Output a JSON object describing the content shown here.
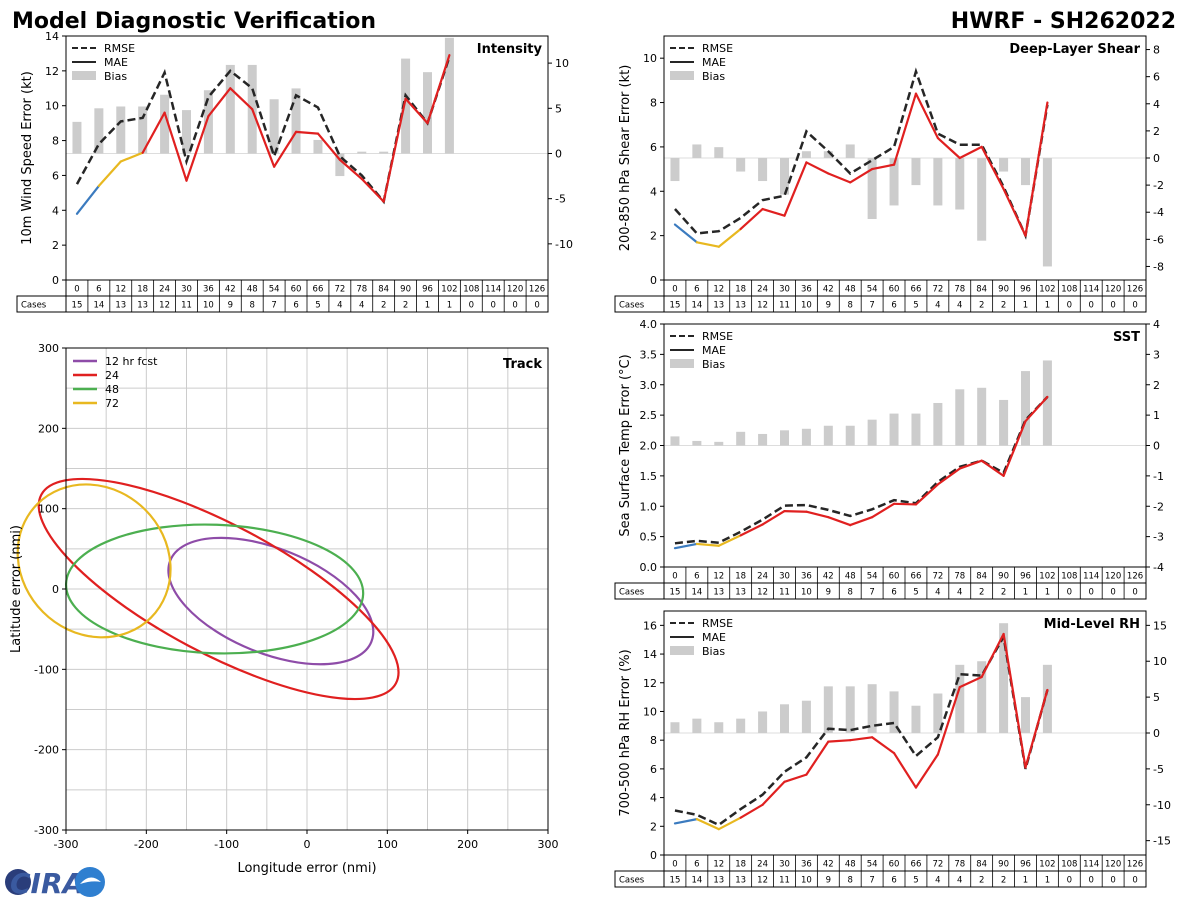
{
  "header": {
    "title": "Model Diagnostic Verification",
    "model_storm": "HWRF - SH262022"
  },
  "logo": {
    "text": "CIRA"
  },
  "colors": {
    "rmse": "#262626",
    "mae": "#262626",
    "bias": "#cccccc",
    "seg_blue": "#3b7bbf",
    "seg_yellow": "#e8b820",
    "seg_red": "#e02020"
  },
  "table": {
    "hours": [
      "0",
      "6",
      "12",
      "18",
      "24",
      "30",
      "36",
      "42",
      "48",
      "54",
      "60",
      "66",
      "72",
      "78",
      "84",
      "90",
      "96",
      "102",
      "108",
      "114",
      "120",
      "126"
    ],
    "cases_label": "Cases",
    "cases": [
      "15",
      "14",
      "13",
      "13",
      "12",
      "11",
      "10",
      "9",
      "8",
      "7",
      "6",
      "5",
      "4",
      "4",
      "2",
      "2",
      "1",
      "1",
      "0",
      "0",
      "0",
      "0"
    ]
  },
  "chart_data": [
    {
      "id": "intensity",
      "type": "line",
      "title": "Intensity",
      "ylabel": "10m Wind Speed Error (kt)",
      "ylim": [
        0,
        14
      ],
      "yticks": [
        0,
        2,
        4,
        6,
        8,
        10,
        12,
        14
      ],
      "y2lim": [
        -14,
        13
      ],
      "y2ticks": [
        -10,
        -5,
        0,
        5,
        10
      ],
      "legend": [
        "RMSE",
        "MAE",
        "Bias"
      ],
      "x": [
        0,
        6,
        12,
        18,
        24,
        30,
        36,
        42,
        48,
        54,
        60,
        66,
        72,
        78,
        84,
        90,
        96,
        102
      ],
      "rmse": [
        5.5,
        7.8,
        9.1,
        9.3,
        11.9,
        6.8,
        10.5,
        12.0,
        11.0,
        7.1,
        10.6,
        9.9,
        7.1,
        6.0,
        4.5,
        10.6,
        9.0,
        12.8
      ],
      "mae": [
        3.8,
        5.4,
        6.8,
        7.3,
        9.6,
        5.7,
        9.4,
        11.0,
        9.8,
        6.5,
        8.5,
        8.4,
        6.9,
        5.8,
        4.5,
        10.4,
        9.0,
        12.9
      ],
      "bias": [
        3.5,
        5.0,
        5.2,
        5.2,
        6.5,
        4.8,
        7.0,
        9.8,
        9.8,
        6.0,
        7.2,
        1.5,
        -2.5,
        0.2,
        0.2,
        10.5,
        9.0,
        12.8
      ]
    },
    {
      "id": "shear",
      "type": "line",
      "title": "Deep-Layer Shear",
      "ylabel": "200-850 hPa Shear Error (kt)",
      "ylim": [
        0,
        11
      ],
      "yticks": [
        0,
        2,
        4,
        6,
        8,
        10
      ],
      "y2lim": [
        -9,
        9
      ],
      "y2ticks": [
        -8,
        -6,
        -4,
        -2,
        0,
        2,
        4,
        6,
        8
      ],
      "legend": [
        "RMSE",
        "MAE",
        "Bias"
      ],
      "x": [
        0,
        6,
        12,
        18,
        24,
        30,
        36,
        42,
        48,
        54,
        60,
        66,
        72,
        78,
        84,
        90,
        96,
        102
      ],
      "rmse": [
        3.2,
        2.1,
        2.2,
        2.8,
        3.6,
        3.8,
        6.7,
        5.8,
        4.8,
        5.4,
        6.0,
        9.4,
        6.6,
        6.1,
        6.1,
        4.2,
        2.0,
        7.9
      ],
      "mae": [
        2.5,
        1.7,
        1.5,
        2.3,
        3.2,
        2.9,
        5.3,
        4.8,
        4.4,
        5.0,
        5.2,
        8.4,
        6.4,
        5.5,
        6.0,
        4.1,
        2.0,
        8.0
      ],
      "bias": [
        -1.7,
        1.0,
        0.8,
        -1.0,
        -1.7,
        -2.7,
        0.5,
        0.5,
        1.0,
        -4.5,
        -3.5,
        -2.0,
        -3.5,
        -3.8,
        -6.1,
        -1.0,
        -2.0,
        -8.0
      ]
    },
    {
      "id": "sst",
      "type": "line",
      "title": "SST",
      "ylabel": "Sea Surface Temp Error (°C)",
      "ylim": [
        0,
        4
      ],
      "yticks": [
        "0.0",
        "0.5",
        "1.0",
        "1.5",
        "2.0",
        "2.5",
        "3.0",
        "3.5",
        "4.0"
      ],
      "y2lim": [
        -4,
        4
      ],
      "y2ticks": [
        -4,
        -3,
        -2,
        -1,
        0,
        1,
        2,
        3,
        4
      ],
      "legend": [
        "RMSE",
        "MAE",
        "Bias"
      ],
      "x": [
        0,
        6,
        12,
        18,
        24,
        30,
        36,
        42,
        48,
        54,
        60,
        66,
        72,
        78,
        84,
        90,
        96,
        102
      ],
      "rmse": [
        0.39,
        0.43,
        0.4,
        0.58,
        0.78,
        1.01,
        1.02,
        0.94,
        0.84,
        0.95,
        1.1,
        1.05,
        1.4,
        1.65,
        1.75,
        1.55,
        2.42,
        2.8
      ],
      "mae": [
        0.31,
        0.38,
        0.35,
        0.52,
        0.7,
        0.92,
        0.91,
        0.82,
        0.69,
        0.82,
        1.04,
        1.03,
        1.36,
        1.62,
        1.75,
        1.5,
        2.4,
        2.8
      ],
      "bias": [
        0.3,
        0.15,
        0.12,
        0.45,
        0.38,
        0.5,
        0.55,
        0.65,
        0.65,
        0.85,
        1.05,
        1.05,
        1.4,
        1.85,
        1.9,
        1.5,
        2.45,
        2.8
      ]
    },
    {
      "id": "rh",
      "type": "line",
      "title": "Mid-Level RH",
      "ylabel": "700-500 hPa RH Error (%)",
      "ylim": [
        0,
        17
      ],
      "yticks": [
        0,
        2,
        4,
        6,
        8,
        10,
        12,
        14,
        16
      ],
      "y2lim": [
        -17,
        17
      ],
      "y2ticks": [
        -15,
        -10,
        -5,
        0,
        5,
        10,
        15
      ],
      "legend": [
        "RMSE",
        "MAE",
        "Bias"
      ],
      "x": [
        0,
        6,
        12,
        18,
        24,
        30,
        36,
        42,
        48,
        54,
        60,
        66,
        72,
        78,
        84,
        90,
        96,
        102
      ],
      "rmse": [
        3.1,
        2.8,
        2.1,
        3.2,
        4.2,
        5.8,
        6.8,
        8.8,
        8.7,
        9.0,
        9.2,
        6.9,
        8.2,
        12.6,
        12.5,
        15.2,
        6.0,
        11.5
      ],
      "mae": [
        2.2,
        2.5,
        1.8,
        2.6,
        3.5,
        5.1,
        5.6,
        7.9,
        8.0,
        8.2,
        7.1,
        4.7,
        7.0,
        11.7,
        12.4,
        15.4,
        6.1,
        11.5
      ],
      "bias": [
        1.5,
        2.0,
        1.5,
        2.0,
        3.0,
        4.0,
        4.5,
        6.5,
        6.5,
        6.8,
        5.8,
        3.8,
        5.5,
        9.5,
        10.0,
        15.3,
        5.0,
        9.5
      ]
    },
    {
      "id": "track",
      "type": "ellipse",
      "title": "Track",
      "xlabel": "Longitude error (nmi)",
      "ylabel": "Latitude error (nmi)",
      "xlim": [
        -300,
        300
      ],
      "ylim": [
        -300,
        300
      ],
      "xticks": [
        -300,
        -200,
        -100,
        0,
        100,
        200,
        300
      ],
      "yticks": [
        -300,
        -200,
        -100,
        0,
        100,
        200,
        300
      ],
      "series": [
        {
          "name": "12 hr fcst",
          "color": "#8e4ca8",
          "cx": -45,
          "cy": -15,
          "rx": 135,
          "ry": 65,
          "angle": 22
        },
        {
          "name": "24",
          "color": "#e02020",
          "cx": -110,
          "cy": 0,
          "rx": 250,
          "ry": 80,
          "angle": 28
        },
        {
          "name": "48",
          "color": "#4caf50",
          "cx": -115,
          "cy": 0,
          "rx": 185,
          "ry": 80,
          "angle": 2
        },
        {
          "name": "72",
          "color": "#e8b820",
          "cx": -265,
          "cy": 35,
          "rx": 100,
          "ry": 90,
          "angle": 45
        }
      ]
    }
  ]
}
